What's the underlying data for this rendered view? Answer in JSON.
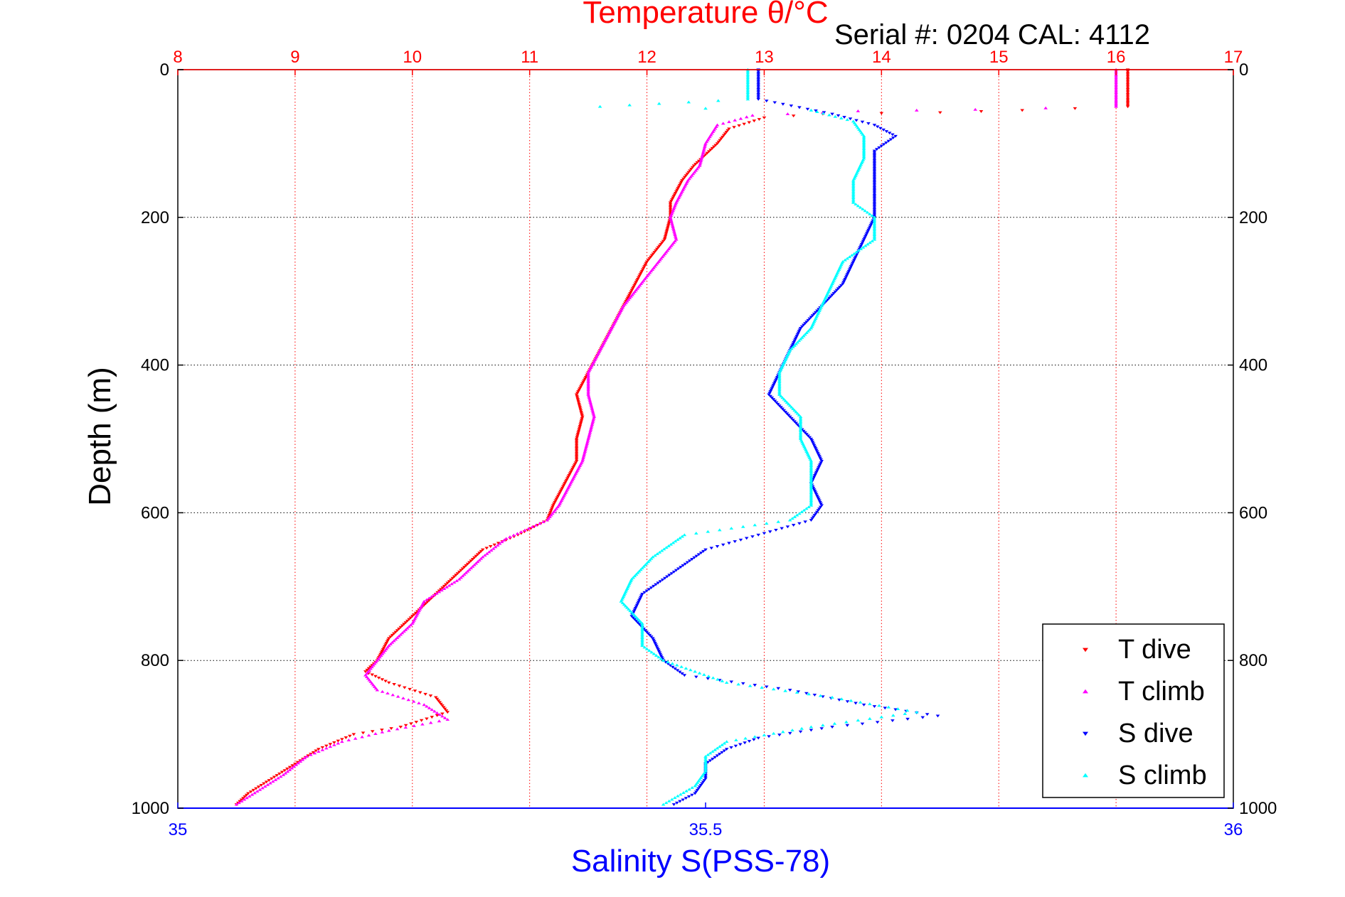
{
  "chart_data": {
    "type": "scatter",
    "title": "Temperature θ/°C",
    "subtitle": "Serial #: 0204  CAL: 4112",
    "ylabel": "Depth (m)",
    "xlabel_bottom": "Salinity S(PSS-78)",
    "ylim": [
      0,
      1000
    ],
    "y_reversed": true,
    "x_top": {
      "label": "Temperature θ/°C",
      "range": [
        8,
        17
      ],
      "ticks": [
        8,
        9,
        10,
        11,
        12,
        13,
        14,
        15,
        16,
        17
      ],
      "color": "#ff0000"
    },
    "x_bottom": {
      "label": "Salinity S(PSS-78)",
      "range": [
        35,
        36
      ],
      "ticks": [
        "35",
        "35.5",
        "36"
      ],
      "color": "#0000ff"
    },
    "y_ticks": [
      0,
      200,
      400,
      600,
      800,
      1000
    ],
    "grid": true,
    "legend_position": "bottom-right",
    "series": [
      {
        "name": "T dive",
        "axis": "top",
        "color": "#ff0000",
        "marker": "triangle-down",
        "points": [
          [
            16.1,
            0
          ],
          [
            16.1,
            20
          ],
          [
            16.1,
            40
          ],
          [
            16.1,
            50
          ],
          [
            15.2,
            55
          ],
          [
            14.5,
            58
          ],
          [
            13.5,
            60
          ],
          [
            13.0,
            65
          ],
          [
            12.7,
            80
          ],
          [
            12.6,
            100
          ],
          [
            12.4,
            130
          ],
          [
            12.3,
            150
          ],
          [
            12.2,
            180
          ],
          [
            12.2,
            200
          ],
          [
            12.15,
            230
          ],
          [
            12.0,
            260
          ],
          [
            11.9,
            290
          ],
          [
            11.8,
            320
          ],
          [
            11.7,
            350
          ],
          [
            11.6,
            380
          ],
          [
            11.5,
            410
          ],
          [
            11.4,
            440
          ],
          [
            11.45,
            470
          ],
          [
            11.4,
            500
          ],
          [
            11.4,
            530
          ],
          [
            11.3,
            560
          ],
          [
            11.2,
            590
          ],
          [
            11.15,
            610
          ],
          [
            10.9,
            630
          ],
          [
            10.6,
            650
          ],
          [
            10.4,
            680
          ],
          [
            10.2,
            710
          ],
          [
            10.0,
            740
          ],
          [
            9.8,
            770
          ],
          [
            9.7,
            800
          ],
          [
            9.6,
            815
          ],
          [
            9.8,
            830
          ],
          [
            10.2,
            850
          ],
          [
            10.3,
            870
          ],
          [
            9.9,
            890
          ],
          [
            9.5,
            900
          ],
          [
            9.2,
            920
          ],
          [
            9.0,
            940
          ],
          [
            8.8,
            960
          ],
          [
            8.6,
            980
          ],
          [
            8.5,
            995
          ]
        ]
      },
      {
        "name": "T climb",
        "axis": "top",
        "color": "#ff00ff",
        "marker": "triangle-up",
        "points": [
          [
            16.0,
            0
          ],
          [
            16.0,
            20
          ],
          [
            16.0,
            40
          ],
          [
            16.0,
            50
          ],
          [
            14.8,
            54
          ],
          [
            13.8,
            56
          ],
          [
            12.9,
            62
          ],
          [
            12.6,
            75
          ],
          [
            12.5,
            100
          ],
          [
            12.45,
            130
          ],
          [
            12.35,
            150
          ],
          [
            12.25,
            180
          ],
          [
            12.2,
            200
          ],
          [
            12.25,
            230
          ],
          [
            12.1,
            260
          ],
          [
            11.95,
            290
          ],
          [
            11.8,
            320
          ],
          [
            11.7,
            350
          ],
          [
            11.6,
            380
          ],
          [
            11.5,
            410
          ],
          [
            11.5,
            440
          ],
          [
            11.55,
            470
          ],
          [
            11.5,
            500
          ],
          [
            11.45,
            530
          ],
          [
            11.35,
            560
          ],
          [
            11.25,
            590
          ],
          [
            11.15,
            610
          ],
          [
            10.8,
            635
          ],
          [
            10.6,
            660
          ],
          [
            10.4,
            690
          ],
          [
            10.1,
            720
          ],
          [
            10.0,
            750
          ],
          [
            9.8,
            780
          ],
          [
            9.7,
            800
          ],
          [
            9.6,
            820
          ],
          [
            9.7,
            840
          ],
          [
            10.1,
            860
          ],
          [
            10.3,
            880
          ],
          [
            9.8,
            895
          ],
          [
            9.4,
            910
          ],
          [
            9.1,
            930
          ],
          [
            8.9,
            955
          ],
          [
            8.7,
            975
          ],
          [
            8.5,
            995
          ]
        ]
      },
      {
        "name": "S dive",
        "axis": "bottom",
        "color": "#0000ff",
        "marker": "triangle-down",
        "points": [
          [
            35.55,
            0
          ],
          [
            35.55,
            20
          ],
          [
            35.55,
            40
          ],
          [
            35.62,
            60
          ],
          [
            35.66,
            75
          ],
          [
            35.68,
            90
          ],
          [
            35.66,
            110
          ],
          [
            35.66,
            140
          ],
          [
            35.66,
            170
          ],
          [
            35.66,
            200
          ],
          [
            35.65,
            230
          ],
          [
            35.64,
            260
          ],
          [
            35.63,
            290
          ],
          [
            35.61,
            320
          ],
          [
            35.59,
            350
          ],
          [
            35.58,
            380
          ],
          [
            35.57,
            410
          ],
          [
            35.56,
            440
          ],
          [
            35.58,
            470
          ],
          [
            35.6,
            500
          ],
          [
            35.61,
            530
          ],
          [
            35.6,
            560
          ],
          [
            35.61,
            590
          ],
          [
            35.6,
            610
          ],
          [
            35.55,
            630
          ],
          [
            35.5,
            650
          ],
          [
            35.47,
            680
          ],
          [
            35.44,
            710
          ],
          [
            35.43,
            740
          ],
          [
            35.45,
            770
          ],
          [
            35.46,
            800
          ],
          [
            35.48,
            820
          ],
          [
            35.58,
            840
          ],
          [
            35.65,
            860
          ],
          [
            35.72,
            875
          ],
          [
            35.62,
            890
          ],
          [
            35.55,
            905
          ],
          [
            35.52,
            920
          ],
          [
            35.5,
            940
          ],
          [
            35.5,
            960
          ],
          [
            35.49,
            980
          ],
          [
            35.47,
            995
          ]
        ]
      },
      {
        "name": "S climb",
        "axis": "bottom",
        "color": "#00ffff",
        "marker": "triangle-up",
        "points": [
          [
            35.54,
            0
          ],
          [
            35.54,
            20
          ],
          [
            35.54,
            40
          ],
          [
            35.4,
            50
          ],
          [
            35.6,
            55
          ],
          [
            35.64,
            70
          ],
          [
            35.65,
            90
          ],
          [
            35.65,
            120
          ],
          [
            35.64,
            150
          ],
          [
            35.64,
            180
          ],
          [
            35.66,
            200
          ],
          [
            35.66,
            230
          ],
          [
            35.63,
            260
          ],
          [
            35.62,
            290
          ],
          [
            35.61,
            320
          ],
          [
            35.6,
            350
          ],
          [
            35.58,
            380
          ],
          [
            35.57,
            410
          ],
          [
            35.57,
            440
          ],
          [
            35.59,
            470
          ],
          [
            35.59,
            500
          ],
          [
            35.6,
            530
          ],
          [
            35.6,
            560
          ],
          [
            35.6,
            590
          ],
          [
            35.58,
            610
          ],
          [
            35.48,
            630
          ],
          [
            35.45,
            660
          ],
          [
            35.43,
            690
          ],
          [
            35.42,
            720
          ],
          [
            35.44,
            750
          ],
          [
            35.44,
            780
          ],
          [
            35.46,
            800
          ],
          [
            35.52,
            830
          ],
          [
            35.62,
            850
          ],
          [
            35.7,
            870
          ],
          [
            35.6,
            890
          ],
          [
            35.52,
            910
          ],
          [
            35.5,
            930
          ],
          [
            35.5,
            950
          ],
          [
            35.49,
            970
          ],
          [
            35.46,
            995
          ]
        ]
      }
    ]
  }
}
